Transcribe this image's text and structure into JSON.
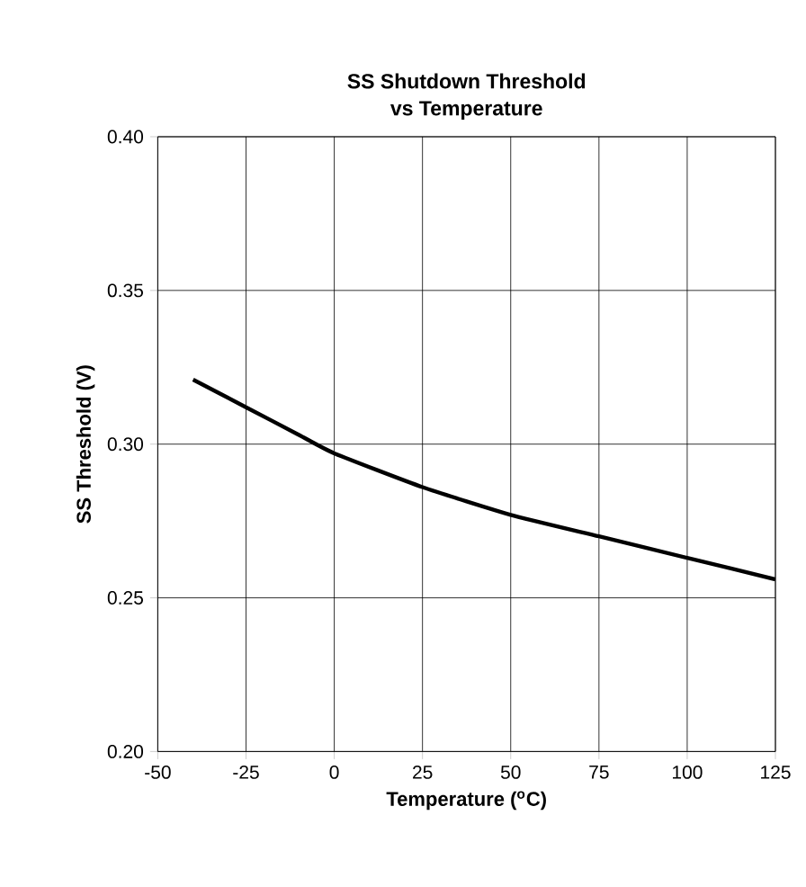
{
  "chart_data": {
    "type": "line",
    "title": "SS Shutdown Threshold\nvs Temperature",
    "xlabel": "Temperature ($^{o}$C)",
    "ylabel": "SS Threshold (V)",
    "x": [
      -40,
      -25,
      -10,
      0,
      25,
      50,
      75,
      100,
      125
    ],
    "series": [
      {
        "color": "#000000",
        "values": [
          0.321,
          0.312,
          0.303,
          0.297,
          0.286,
          0.277,
          0.27,
          0.263,
          0.256
        ]
      }
    ],
    "xlim": [
      -50,
      125
    ],
    "xticks": [
      -50,
      -25,
      0,
      25,
      50,
      75,
      100,
      125
    ],
    "ylim": [
      0.2,
      0.4
    ],
    "yticks": [
      {
        "value": 0.2,
        "label": "0.20"
      },
      {
        "value": 0.25,
        "label": "0.25"
      },
      {
        "value": 0.3,
        "label": "0.30"
      },
      {
        "value": 0.35,
        "label": "0.35"
      },
      {
        "value": 0.4,
        "label": "0.40"
      }
    ],
    "grid": true,
    "marker": "none",
    "line_style": "solid"
  }
}
